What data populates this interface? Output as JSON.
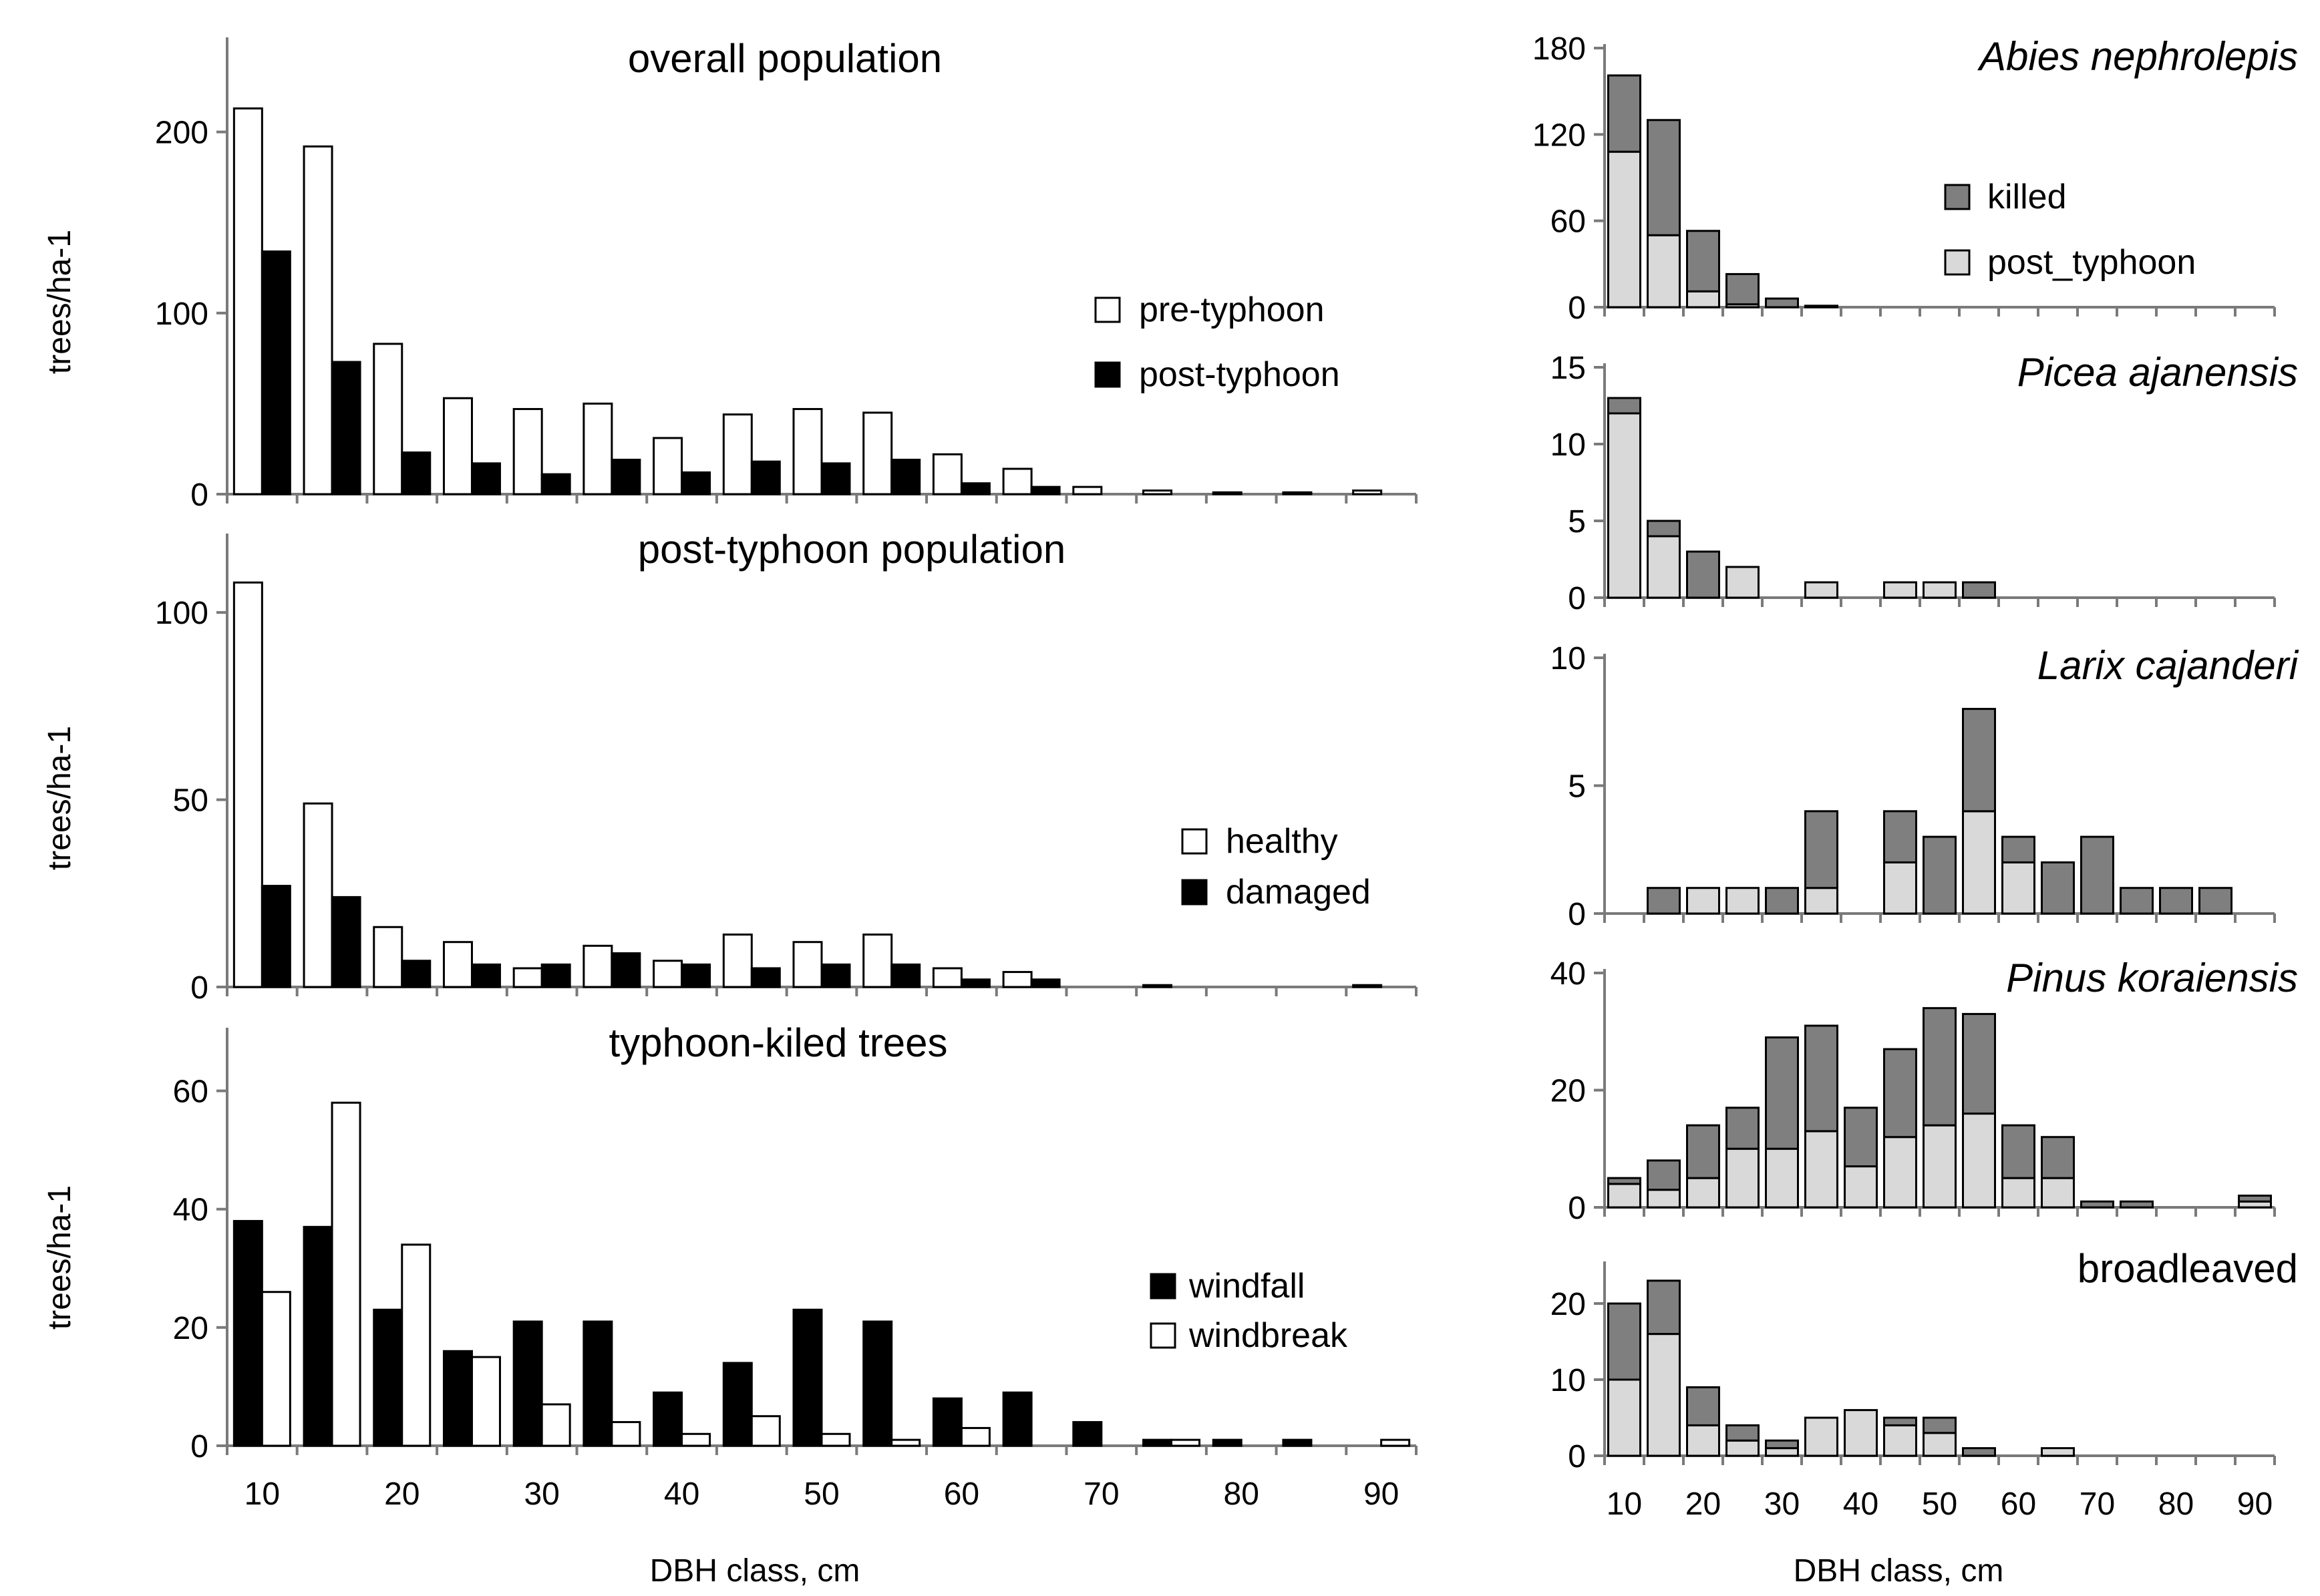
{
  "colors": {
    "white": "#ffffff",
    "black": "#000000",
    "killed": "#7f7f7f",
    "post_typhoon": "#d9d9d9",
    "axis": "#7a7a7a"
  },
  "chart_data": [
    {
      "id": "overall",
      "type": "bar",
      "title": "overall population",
      "ylabel": "trees/ha-1",
      "ylim": [
        0,
        250
      ],
      "yticks": [
        0,
        100,
        200
      ],
      "categories": [
        10,
        15,
        20,
        25,
        30,
        35,
        40,
        45,
        50,
        55,
        60,
        65,
        70,
        75,
        80,
        85,
        90
      ],
      "series": [
        {
          "name": "pre-typhoon",
          "color": "#ffffff",
          "values": [
            213,
            192,
            83,
            53,
            47,
            50,
            31,
            44,
            47,
            45,
            22,
            14,
            4,
            2,
            1,
            1,
            2
          ]
        },
        {
          "name": "post-typhoon",
          "color": "#000000",
          "values": [
            134,
            73,
            23,
            17,
            11,
            19,
            12,
            18,
            17,
            19,
            6,
            4,
            0,
            0,
            0,
            0,
            0
          ]
        }
      ]
    },
    {
      "id": "post",
      "type": "bar",
      "title": "post-typhoon population",
      "ylabel": "trees/ha-1",
      "ylim": [
        0,
        120
      ],
      "yticks": [
        0,
        50,
        100
      ],
      "categories": [
        10,
        15,
        20,
        25,
        30,
        35,
        40,
        45,
        50,
        55,
        60,
        65,
        70,
        75,
        80,
        85,
        90
      ],
      "series": [
        {
          "name": "healthy",
          "color": "#ffffff",
          "values": [
            108,
            49,
            16,
            12,
            5,
            11,
            7,
            14,
            12,
            14,
            5,
            4,
            0,
            0.5,
            0,
            0,
            0.5
          ]
        },
        {
          "name": "damaged",
          "color": "#000000",
          "values": [
            27,
            24,
            7,
            6,
            6,
            9,
            6,
            5,
            6,
            6,
            2,
            2,
            0,
            0,
            0,
            0,
            0
          ]
        }
      ]
    },
    {
      "id": "killed",
      "type": "bar",
      "title": "typhoon-kiled trees",
      "ylabel": "trees/ha-1",
      "ylim": [
        0,
        70
      ],
      "yticks": [
        0,
        20,
        40,
        60
      ],
      "xlabel": "DBH class, cm",
      "xticklabels": [
        "10",
        "20",
        "30",
        "40",
        "50",
        "60",
        "70",
        "80",
        "90"
      ],
      "categories": [
        10,
        15,
        20,
        25,
        30,
        35,
        40,
        45,
        50,
        55,
        60,
        65,
        70,
        75,
        80,
        85,
        90
      ],
      "series": [
        {
          "name": "windfall",
          "color": "#000000",
          "values": [
            38,
            37,
            23,
            16,
            21,
            21,
            9,
            14,
            23,
            21,
            8,
            9,
            4,
            1,
            1,
            1,
            0
          ]
        },
        {
          "name": "windbreak",
          "color": "#ffffff",
          "values": [
            26,
            58,
            34,
            15,
            7,
            4,
            2,
            5,
            2,
            1,
            3,
            0,
            0,
            1,
            0,
            0,
            1
          ]
        }
      ]
    },
    {
      "id": "abies",
      "type": "bar",
      "stacked": true,
      "title": "Abies nephrolepis",
      "ylim": [
        0,
        180
      ],
      "yticks": [
        0,
        60,
        120,
        180
      ],
      "categories": [
        10,
        15,
        20,
        25,
        30,
        35,
        40,
        45,
        50,
        55,
        60,
        65,
        70,
        75,
        80,
        85,
        90
      ],
      "series": [
        {
          "name": "post_typhoon",
          "color": "#d9d9d9",
          "values": [
            108,
            50,
            11,
            2,
            0,
            0,
            0,
            0,
            0,
            0,
            0,
            0,
            0,
            0,
            0,
            0,
            0
          ]
        },
        {
          "name": "killed",
          "color": "#7f7f7f",
          "values": [
            53,
            80,
            42,
            21,
            6,
            1,
            0,
            0,
            0,
            0,
            0,
            0,
            0,
            0,
            0,
            0,
            0
          ]
        }
      ]
    },
    {
      "id": "picea",
      "type": "bar",
      "stacked": true,
      "title": "Picea ajanensis",
      "ylim": [
        0,
        15
      ],
      "yticks": [
        0,
        5,
        10,
        15
      ],
      "categories": [
        10,
        15,
        20,
        25,
        30,
        35,
        40,
        45,
        50,
        55,
        60,
        65,
        70,
        75,
        80,
        85,
        90
      ],
      "series": [
        {
          "name": "post_typhoon",
          "values": [
            12,
            4,
            0,
            2,
            0,
            1,
            0,
            1,
            1,
            0,
            0,
            0,
            0,
            0,
            0,
            0,
            0
          ]
        },
        {
          "name": "killed",
          "values": [
            1,
            1,
            3,
            0,
            0,
            0,
            0,
            0,
            0,
            1,
            0,
            0,
            0,
            0,
            0,
            0,
            0
          ]
        }
      ]
    },
    {
      "id": "larix",
      "type": "bar",
      "stacked": true,
      "title": "Larix cajanderi",
      "ylim": [
        0,
        10
      ],
      "yticks": [
        0,
        5,
        10
      ],
      "categories": [
        10,
        15,
        20,
        25,
        30,
        35,
        40,
        45,
        50,
        55,
        60,
        65,
        70,
        75,
        80,
        85,
        90
      ],
      "series": [
        {
          "name": "post_typhoon",
          "values": [
            0,
            0,
            1,
            1,
            0,
            1,
            0,
            2,
            0,
            4,
            2,
            0,
            0,
            0,
            0,
            0,
            0
          ]
        },
        {
          "name": "killed",
          "values": [
            0,
            1,
            0,
            0,
            1,
            3,
            0,
            2,
            3,
            4,
            1,
            2,
            3,
            1,
            1,
            1,
            0
          ]
        }
      ]
    },
    {
      "id": "pinus",
      "type": "bar",
      "stacked": true,
      "title": "Pinus koraiensis",
      "ylim": [
        0,
        40
      ],
      "yticks": [
        0,
        20,
        40
      ],
      "categories": [
        10,
        15,
        20,
        25,
        30,
        35,
        40,
        45,
        50,
        55,
        60,
        65,
        70,
        75,
        80,
        85,
        90
      ],
      "series": [
        {
          "name": "post_typhoon",
          "values": [
            4,
            3,
            5,
            10,
            10,
            13,
            7,
            12,
            14,
            16,
            5,
            5,
            0,
            0,
            0,
            0,
            1
          ]
        },
        {
          "name": "killed",
          "values": [
            1,
            5,
            9,
            7,
            19,
            18,
            10,
            15,
            20,
            17,
            9,
            7,
            1,
            1,
            0,
            0,
            1
          ]
        }
      ]
    },
    {
      "id": "broad",
      "type": "bar",
      "stacked": true,
      "title": "broadleaved",
      "ylim": [
        0,
        25
      ],
      "yticks": [
        0,
        10,
        20
      ],
      "xlabel": "DBH class, cm",
      "xticklabels": [
        "10",
        "20",
        "30",
        "40",
        "50",
        "60",
        "70",
        "80",
        "90"
      ],
      "categories": [
        10,
        15,
        20,
        25,
        30,
        35,
        40,
        45,
        50,
        55,
        60,
        65,
        70,
        75,
        80,
        85,
        90
      ],
      "series": [
        {
          "name": "post_typhoon",
          "values": [
            10,
            16,
            4,
            2,
            1,
            5,
            6,
            4,
            3,
            0,
            0,
            1,
            0,
            0,
            0,
            0,
            0
          ]
        },
        {
          "name": "killed",
          "values": [
            10,
            7,
            5,
            2,
            1,
            0,
            0,
            1,
            2,
            1,
            0,
            0,
            0,
            0,
            0,
            0,
            0
          ]
        }
      ]
    }
  ]
}
